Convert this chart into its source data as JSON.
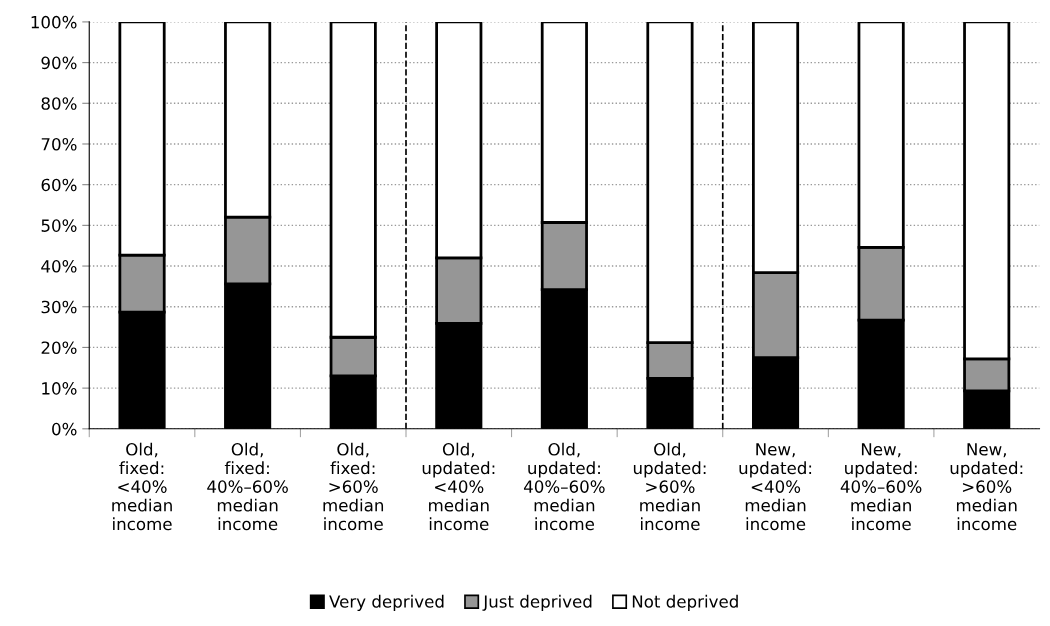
{
  "chart_data": {
    "type": "bar",
    "stacked": true,
    "categories": [
      "Old,\nfixed:\n<40%\nmedian\nincome",
      "Old,\nfixed:\n40%–60%\nmedian\nincome",
      "Old,\nfixed:\n>60%\nmedian\nincome",
      "Old,\nupdated:\n<40%\nmedian\nincome",
      "Old,\nupdated:\n40%–60%\nmedian\nincome",
      "Old,\nupdated:\n>60%\nmedian\nincome",
      "New,\nupdated:\n<40%\nmedian\nincome",
      "New,\nupdated:\n40%–60%\nmedian\nincome",
      "New,\nupdated:\n>60%\nmedian\nincome"
    ],
    "series": [
      {
        "name": "Very deprived",
        "color": "#000000",
        "values": [
          28.7,
          35.6,
          13.0,
          25.9,
          34.2,
          12.4,
          17.5,
          26.7,
          9.3
        ]
      },
      {
        "name": "Just deprived",
        "color": "#969696",
        "values": [
          14.0,
          16.4,
          9.5,
          16.1,
          16.5,
          8.8,
          20.9,
          17.9,
          7.9
        ]
      },
      {
        "name": "Not deprived",
        "color": "#ffffff",
        "values": [
          57.3,
          48.0,
          77.5,
          58.0,
          49.3,
          78.8,
          61.6,
          55.4,
          82.8
        ]
      }
    ],
    "ylim": [
      0,
      100
    ],
    "yticks": [
      {
        "value": 0,
        "label": "0%"
      },
      {
        "value": 10,
        "label": "10%"
      },
      {
        "value": 20,
        "label": "20%"
      },
      {
        "value": 30,
        "label": "30%"
      },
      {
        "value": 40,
        "label": "40%"
      },
      {
        "value": 50,
        "label": "50%"
      },
      {
        "value": 60,
        "label": "60%"
      },
      {
        "value": 70,
        "label": "70%"
      },
      {
        "value": 80,
        "label": "80%"
      },
      {
        "value": 90,
        "label": "90%"
      },
      {
        "value": 100,
        "label": "100%"
      }
    ],
    "grid": "y",
    "legend": "bottom"
  }
}
